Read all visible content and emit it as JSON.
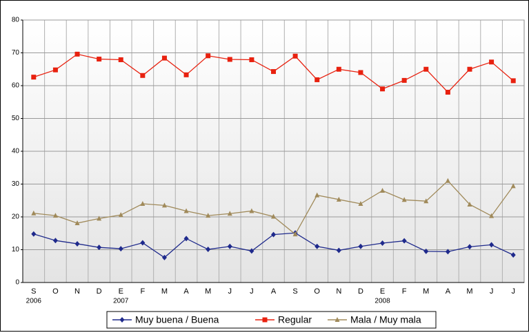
{
  "chart_data": {
    "type": "line",
    "categories": [
      "S",
      "O",
      "N",
      "D",
      "E",
      "F",
      "M",
      "A",
      "M",
      "J",
      "J",
      "A",
      "S",
      "O",
      "N",
      "D",
      "E",
      "F",
      "M",
      "A",
      "M",
      "J",
      "J"
    ],
    "category_years": [
      "2006",
      null,
      null,
      null,
      "2007",
      null,
      null,
      null,
      null,
      null,
      null,
      null,
      null,
      null,
      null,
      null,
      "2008",
      null,
      null,
      null,
      null,
      null,
      null
    ],
    "series": [
      {
        "name": "Muy buena / Buena",
        "color": "#1f2a8c",
        "marker": "diamond",
        "values": [
          14.8,
          12.8,
          11.8,
          10.7,
          10.3,
          12.1,
          7.6,
          13.4,
          10.1,
          11.0,
          9.6,
          14.6,
          15.1,
          11.0,
          9.8,
          11.0,
          12.0,
          12.7,
          9.5,
          9.4,
          10.9,
          11.5,
          8.4
        ]
      },
      {
        "name": "Regular",
        "color": "#e8210f",
        "marker": "square",
        "values": [
          62.6,
          64.8,
          69.6,
          68.1,
          67.9,
          63.1,
          68.4,
          63.3,
          69.1,
          68.0,
          67.9,
          64.3,
          69.0,
          61.8,
          65.0,
          64.0,
          59.0,
          61.6,
          65.0,
          58.0,
          65.0,
          67.2,
          61.5
        ]
      },
      {
        "name": "Mala / Muy mala",
        "color": "#a08a5a",
        "marker": "triangle",
        "values": [
          21.1,
          20.4,
          18.1,
          19.5,
          20.6,
          24.0,
          23.5,
          21.8,
          20.4,
          21.0,
          21.8,
          20.1,
          14.7,
          26.6,
          25.3,
          24.0,
          28.0,
          25.2,
          24.8,
          31.0,
          23.8,
          20.3,
          29.4
        ]
      }
    ],
    "ylim": [
      0,
      80
    ],
    "yticks": [
      0,
      10,
      20,
      30,
      40,
      50,
      60,
      70,
      80
    ],
    "grid": true,
    "legend": "bottom"
  }
}
